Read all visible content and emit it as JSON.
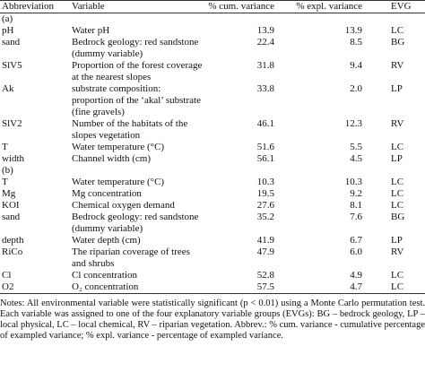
{
  "table": {
    "columns": [
      "Abbreviation",
      "Variable",
      "% cum. variance",
      "% expl. variance",
      "EVG"
    ],
    "sections": [
      {
        "label": "(a)",
        "rows": [
          [
            "pH",
            "Water pH",
            "13.9",
            "13.9",
            "LC"
          ],
          [
            "sand",
            "Bedrock geology: red sandstone (dummy variable)",
            "22.4",
            "8.5",
            "BG"
          ],
          [
            "SlV5",
            "Proportion of the forest coverage at the nearest slopes",
            "31.8",
            "9.4",
            "RV"
          ],
          [
            "Ak",
            "substrate composition: proportion of the ‘akal’ substrate (fine gravels)",
            "33.8",
            "2.0",
            "LP"
          ],
          [
            "SlV2",
            "Number of the habitats of the slopes vegetation",
            "46.1",
            "12.3",
            "RV"
          ],
          [
            "T",
            "Water temperature (°C)",
            "51.6",
            "5.5",
            "LC"
          ],
          [
            "width",
            "Channel width (cm)",
            "56.1",
            "4.5",
            "LP"
          ]
        ]
      },
      {
        "label": "(b)",
        "rows": [
          [
            "T",
            "Water temperature (°C)",
            "10.3",
            "10.3",
            "LC"
          ],
          [
            "Mg",
            "Mg concentration",
            "19.5",
            "9.2",
            "LC"
          ],
          [
            "KOI",
            "Chemical oxygen demand",
            "27.6",
            "8.1",
            "LC"
          ],
          [
            "sand",
            "Bedrock geology: red sandstone (dummy variable)",
            "35.2",
            "7.6",
            "BG"
          ],
          [
            "depth",
            "Water depth (cm)",
            "41.9",
            "6.7",
            "LP"
          ],
          [
            "RiCo",
            "The riparian coverage of trees and shrubs",
            "47.9",
            "6.0",
            "RV"
          ],
          [
            "Cl",
            "Cl concentration",
            "52.8",
            "4.9",
            "LC"
          ],
          [
            "O2",
            "O₂ concentration",
            "57.5",
            "4.7",
            "LC"
          ]
        ]
      }
    ]
  },
  "notes": "Notes: All environmental variable were statistically significant (p < 0.01) using a Monte Carlo permutation test. Each variable was assigned to one of the four explanatory variable groups (EVGs): BG – bedrock geology, LP – local physical, LC – local chemical, RV – riparian vegetation. Abbrev.: % cum. variance - cumulative percentage of exampled variance; % expl. variance - percentage of exampled variance."
}
